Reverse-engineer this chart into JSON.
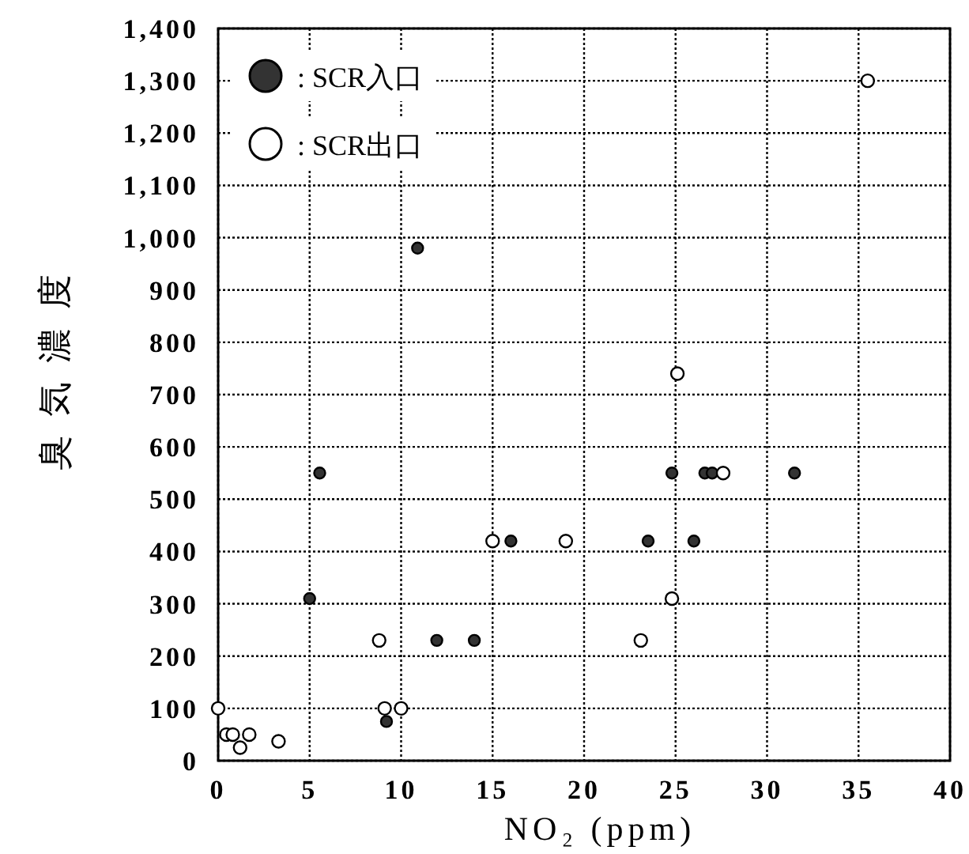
{
  "chart_data": {
    "type": "scatter",
    "xlabel": "NO₂ (ppm)",
    "ylabel": "臭気濃度",
    "xlim": [
      0,
      40
    ],
    "xticks": [
      0,
      5,
      10,
      15,
      20,
      25,
      30,
      35,
      40
    ],
    "ylim": [
      0,
      1400
    ],
    "yticks": [
      0,
      100,
      200,
      300,
      400,
      500,
      600,
      700,
      800,
      900,
      {
        "value": 1000,
        "label": "1,000"
      },
      {
        "value": 1100,
        "label": "1,100"
      },
      {
        "value": 1200,
        "label": "1,200"
      },
      {
        "value": 1300,
        "label": "1,300"
      },
      {
        "value": 1400,
        "label": "1,400"
      }
    ],
    "grid": true,
    "legend": "top left",
    "marker": "circle",
    "series": [
      {
        "name": ": SCR入口",
        "color": "#333333",
        "x": [
          10.9,
          5.55,
          5.0,
          9.2,
          11.95,
          14.0,
          16.0,
          23.5,
          26.0,
          24.8,
          26.6,
          27.0,
          31.5
        ],
        "values": [
          980,
          550,
          310,
          75,
          230,
          230,
          420,
          420,
          420,
          550,
          550,
          550,
          550
        ]
      },
      {
        "name": ": SCR出口",
        "color": "#ffffff",
        "x": [
          35.5,
          25.1,
          0,
          0.45,
          0.8,
          1.7,
          1.2,
          3.3,
          8.8,
          9.1,
          10.0,
          15.0,
          19.0,
          23.1,
          24.8,
          27.6
        ],
        "values": [
          1300,
          740,
          100,
          50,
          50,
          50,
          25,
          37,
          230,
          100,
          100,
          420,
          420,
          230,
          310,
          550
        ]
      }
    ]
  }
}
